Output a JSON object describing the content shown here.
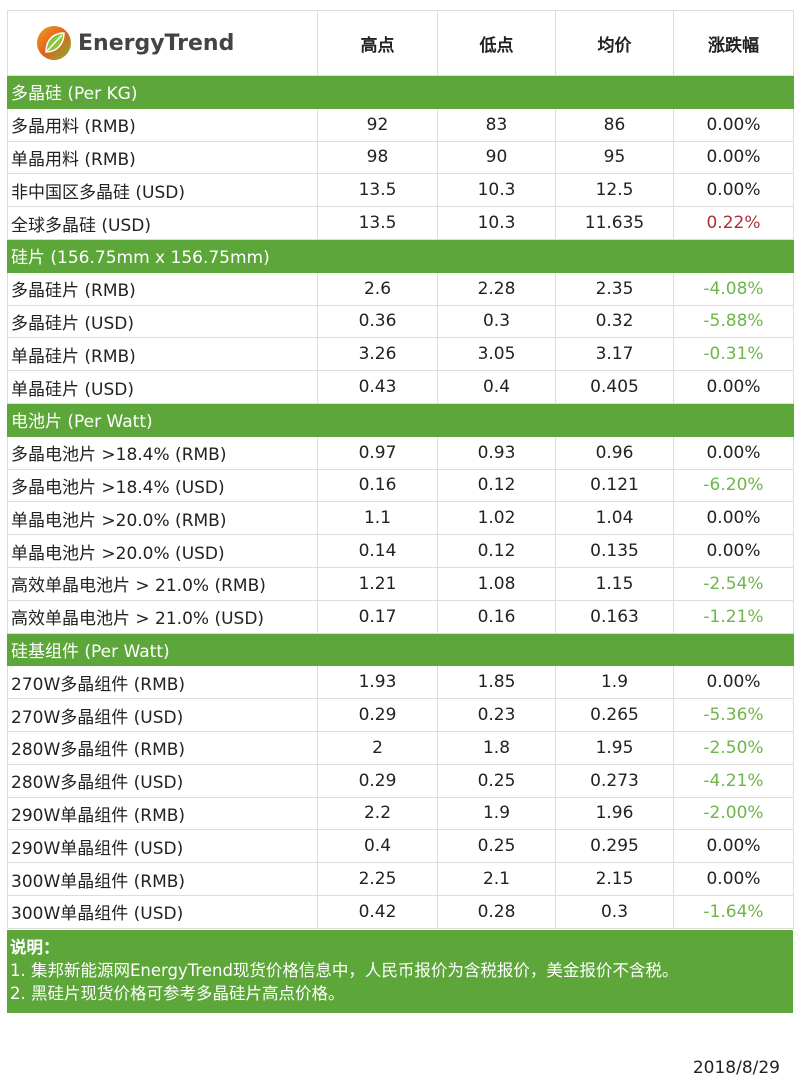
{
  "header": {
    "logo_text": "EnergyTrend",
    "columns": [
      "高点",
      "低点",
      "均价",
      "涨跌幅"
    ]
  },
  "sections": [
    {
      "title": "多晶硅 (Per KG)",
      "rows": [
        {
          "name": "多晶用料 (RMB)",
          "high": "92",
          "low": "83",
          "avg": "86",
          "change": "0.00%",
          "trend": "flat"
        },
        {
          "name": "单晶用料 (RMB)",
          "high": "98",
          "low": "90",
          "avg": "95",
          "change": "0.00%",
          "trend": "flat"
        },
        {
          "name": "非中国区多晶硅 (USD)",
          "high": "13.5",
          "low": "10.3",
          "avg": "12.5",
          "change": "0.00%",
          "trend": "flat"
        },
        {
          "name": "全球多晶硅 (USD)",
          "high": "13.5",
          "low": "10.3",
          "avg": "11.635",
          "change": "0.22%",
          "trend": "up"
        }
      ]
    },
    {
      "title": "硅片 (156.75mm x 156.75mm)",
      "rows": [
        {
          "name": "多晶硅片 (RMB)",
          "high": "2.6",
          "low": "2.28",
          "avg": "2.35",
          "change": "-4.08%",
          "trend": "down"
        },
        {
          "name": "多晶硅片 (USD)",
          "high": "0.36",
          "low": "0.3",
          "avg": "0.32",
          "change": "-5.88%",
          "trend": "down"
        },
        {
          "name": "单晶硅片 (RMB)",
          "high": "3.26",
          "low": "3.05",
          "avg": "3.17",
          "change": "-0.31%",
          "trend": "down"
        },
        {
          "name": "单晶硅片 (USD)",
          "high": "0.43",
          "low": "0.4",
          "avg": "0.405",
          "change": "0.00%",
          "trend": "flat"
        }
      ]
    },
    {
      "title": "电池片 (Per Watt)",
      "rows": [
        {
          "name": "多晶电池片  >18.4% (RMB)",
          "high": "0.97",
          "low": "0.93",
          "avg": "0.96",
          "change": "0.00%",
          "trend": "flat"
        },
        {
          "name": "多晶电池片  >18.4% (USD)",
          "high": "0.16",
          "low": "0.12",
          "avg": "0.121",
          "change": "-6.20%",
          "trend": "down"
        },
        {
          "name": "单晶电池片 >20.0% (RMB)",
          "high": "1.1",
          "low": "1.02",
          "avg": "1.04",
          "change": "0.00%",
          "trend": "flat"
        },
        {
          "name": "单晶电池片 >20.0% (USD)",
          "high": "0.14",
          "low": "0.12",
          "avg": "0.135",
          "change": "0.00%",
          "trend": "flat"
        },
        {
          "name": "高效单晶电池片 > 21.0% (RMB)",
          "high": "1.21",
          "low": "1.08",
          "avg": "1.15",
          "change": "-2.54%",
          "trend": "down"
        },
        {
          "name": "高效单晶电池片 > 21.0% (USD)",
          "high": "0.17",
          "low": "0.16",
          "avg": "0.163",
          "change": "-1.21%",
          "trend": "down"
        }
      ]
    },
    {
      "title": "硅基组件 (Per Watt)",
      "rows": [
        {
          "name": "270W多晶组件 (RMB)",
          "high": "1.93",
          "low": "1.85",
          "avg": "1.9",
          "change": "0.00%",
          "trend": "flat"
        },
        {
          "name": "270W多晶组件 (USD)",
          "high": "0.29",
          "low": "0.23",
          "avg": "0.265",
          "change": "-5.36%",
          "trend": "down"
        },
        {
          "name": "280W多晶组件 (RMB)",
          "high": "2",
          "low": "1.8",
          "avg": "1.95",
          "change": "-2.50%",
          "trend": "down"
        },
        {
          "name": "280W多晶组件 (USD)",
          "high": "0.29",
          "low": "0.25",
          "avg": "0.273",
          "change": "-4.21%",
          "trend": "down"
        },
        {
          "name": "290W单晶组件 (RMB)",
          "high": "2.2",
          "low": "1.9",
          "avg": "1.96",
          "change": "-2.00%",
          "trend": "down"
        },
        {
          "name": "290W单晶组件 (USD)",
          "high": "0.4",
          "low": "0.25",
          "avg": "0.295",
          "change": "0.00%",
          "trend": "flat"
        },
        {
          "name": "300W单晶组件 (RMB)",
          "high": "2.25",
          "low": "2.1",
          "avg": "2.15",
          "change": "0.00%",
          "trend": "flat"
        },
        {
          "name": "300W单晶组件 (USD)",
          "high": "0.42",
          "low": "0.28",
          "avg": "0.3",
          "change": "-1.64%",
          "trend": "down"
        }
      ]
    }
  ],
  "notes": {
    "title": "说明：",
    "items": [
      "1. 集邦新能源网EnergyTrend现货价格信息中，人民币报价为含税报价，美金报价不含税。",
      "2. 黑硅片现货价格可参考多晶硅片高点价格。"
    ]
  },
  "date": "2018/8/29",
  "colors": {
    "section_bg": "#5da639",
    "up": "#b0303a",
    "down": "#6fb64a"
  }
}
